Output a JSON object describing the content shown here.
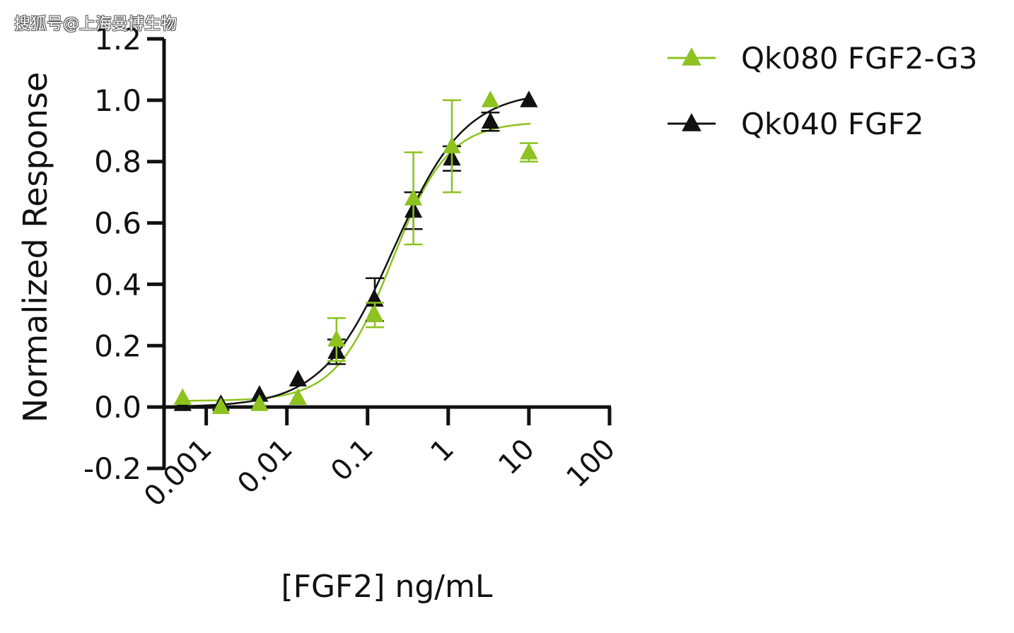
{
  "watermark": "搜狐号@上海曼博生物",
  "chart_data": {
    "type": "scatter",
    "xscale": "log",
    "xlabel": "[FGF2] ng/mL",
    "ylabel": "Normalized Response",
    "xlim": [
      0.0003,
      100
    ],
    "ylim": [
      -0.2,
      1.2
    ],
    "xticks": [
      "0.001",
      "0.01",
      "0.1",
      "1",
      "10",
      "100"
    ],
    "xtick_values": [
      0.001,
      0.01,
      0.1,
      1,
      10,
      100
    ],
    "yticks": [
      "-0.2",
      "0.0",
      "0.2",
      "0.4",
      "0.6",
      "0.8",
      "1.0",
      "1.2"
    ],
    "ytick_values": [
      -0.2,
      0,
      0.2,
      0.4,
      0.6,
      0.8,
      1.0,
      1.2
    ],
    "grid": false,
    "legend_position": "top-right",
    "series": [
      {
        "name": "Qk080 FGF2-G3",
        "color": "#8dc21f",
        "marker": "triangle",
        "x": [
          0.00051,
          0.00152,
          0.00457,
          0.0137,
          0.0412,
          0.123,
          0.37,
          1.11,
          3.33,
          10
        ],
        "y": [
          0.03,
          0.0,
          0.01,
          0.03,
          0.22,
          0.3,
          0.68,
          0.85,
          1.0,
          0.83
        ],
        "err": [
          0,
          0,
          0,
          0,
          0.07,
          0.04,
          0.15,
          0.15,
          0,
          0.03
        ],
        "fit": {
          "bottom": 0.02,
          "top": 0.93,
          "ec50": 0.2,
          "hill": 1.25
        }
      },
      {
        "name": "Qk040 FGF2",
        "color": "#111111",
        "marker": "triangle",
        "x": [
          0.00051,
          0.00152,
          0.00457,
          0.0137,
          0.0412,
          0.123,
          0.37,
          1.11,
          3.33,
          10
        ],
        "y": [
          0.01,
          0.01,
          0.04,
          0.09,
          0.18,
          0.35,
          0.64,
          0.81,
          0.93,
          1.0
        ],
        "err": [
          0,
          0,
          0,
          0,
          0.04,
          0.07,
          0.06,
          0.04,
          0.03,
          0
        ],
        "fit": {
          "bottom": 0.0,
          "top": 1.03,
          "ec50": 0.21,
          "hill": 0.98
        }
      }
    ]
  }
}
